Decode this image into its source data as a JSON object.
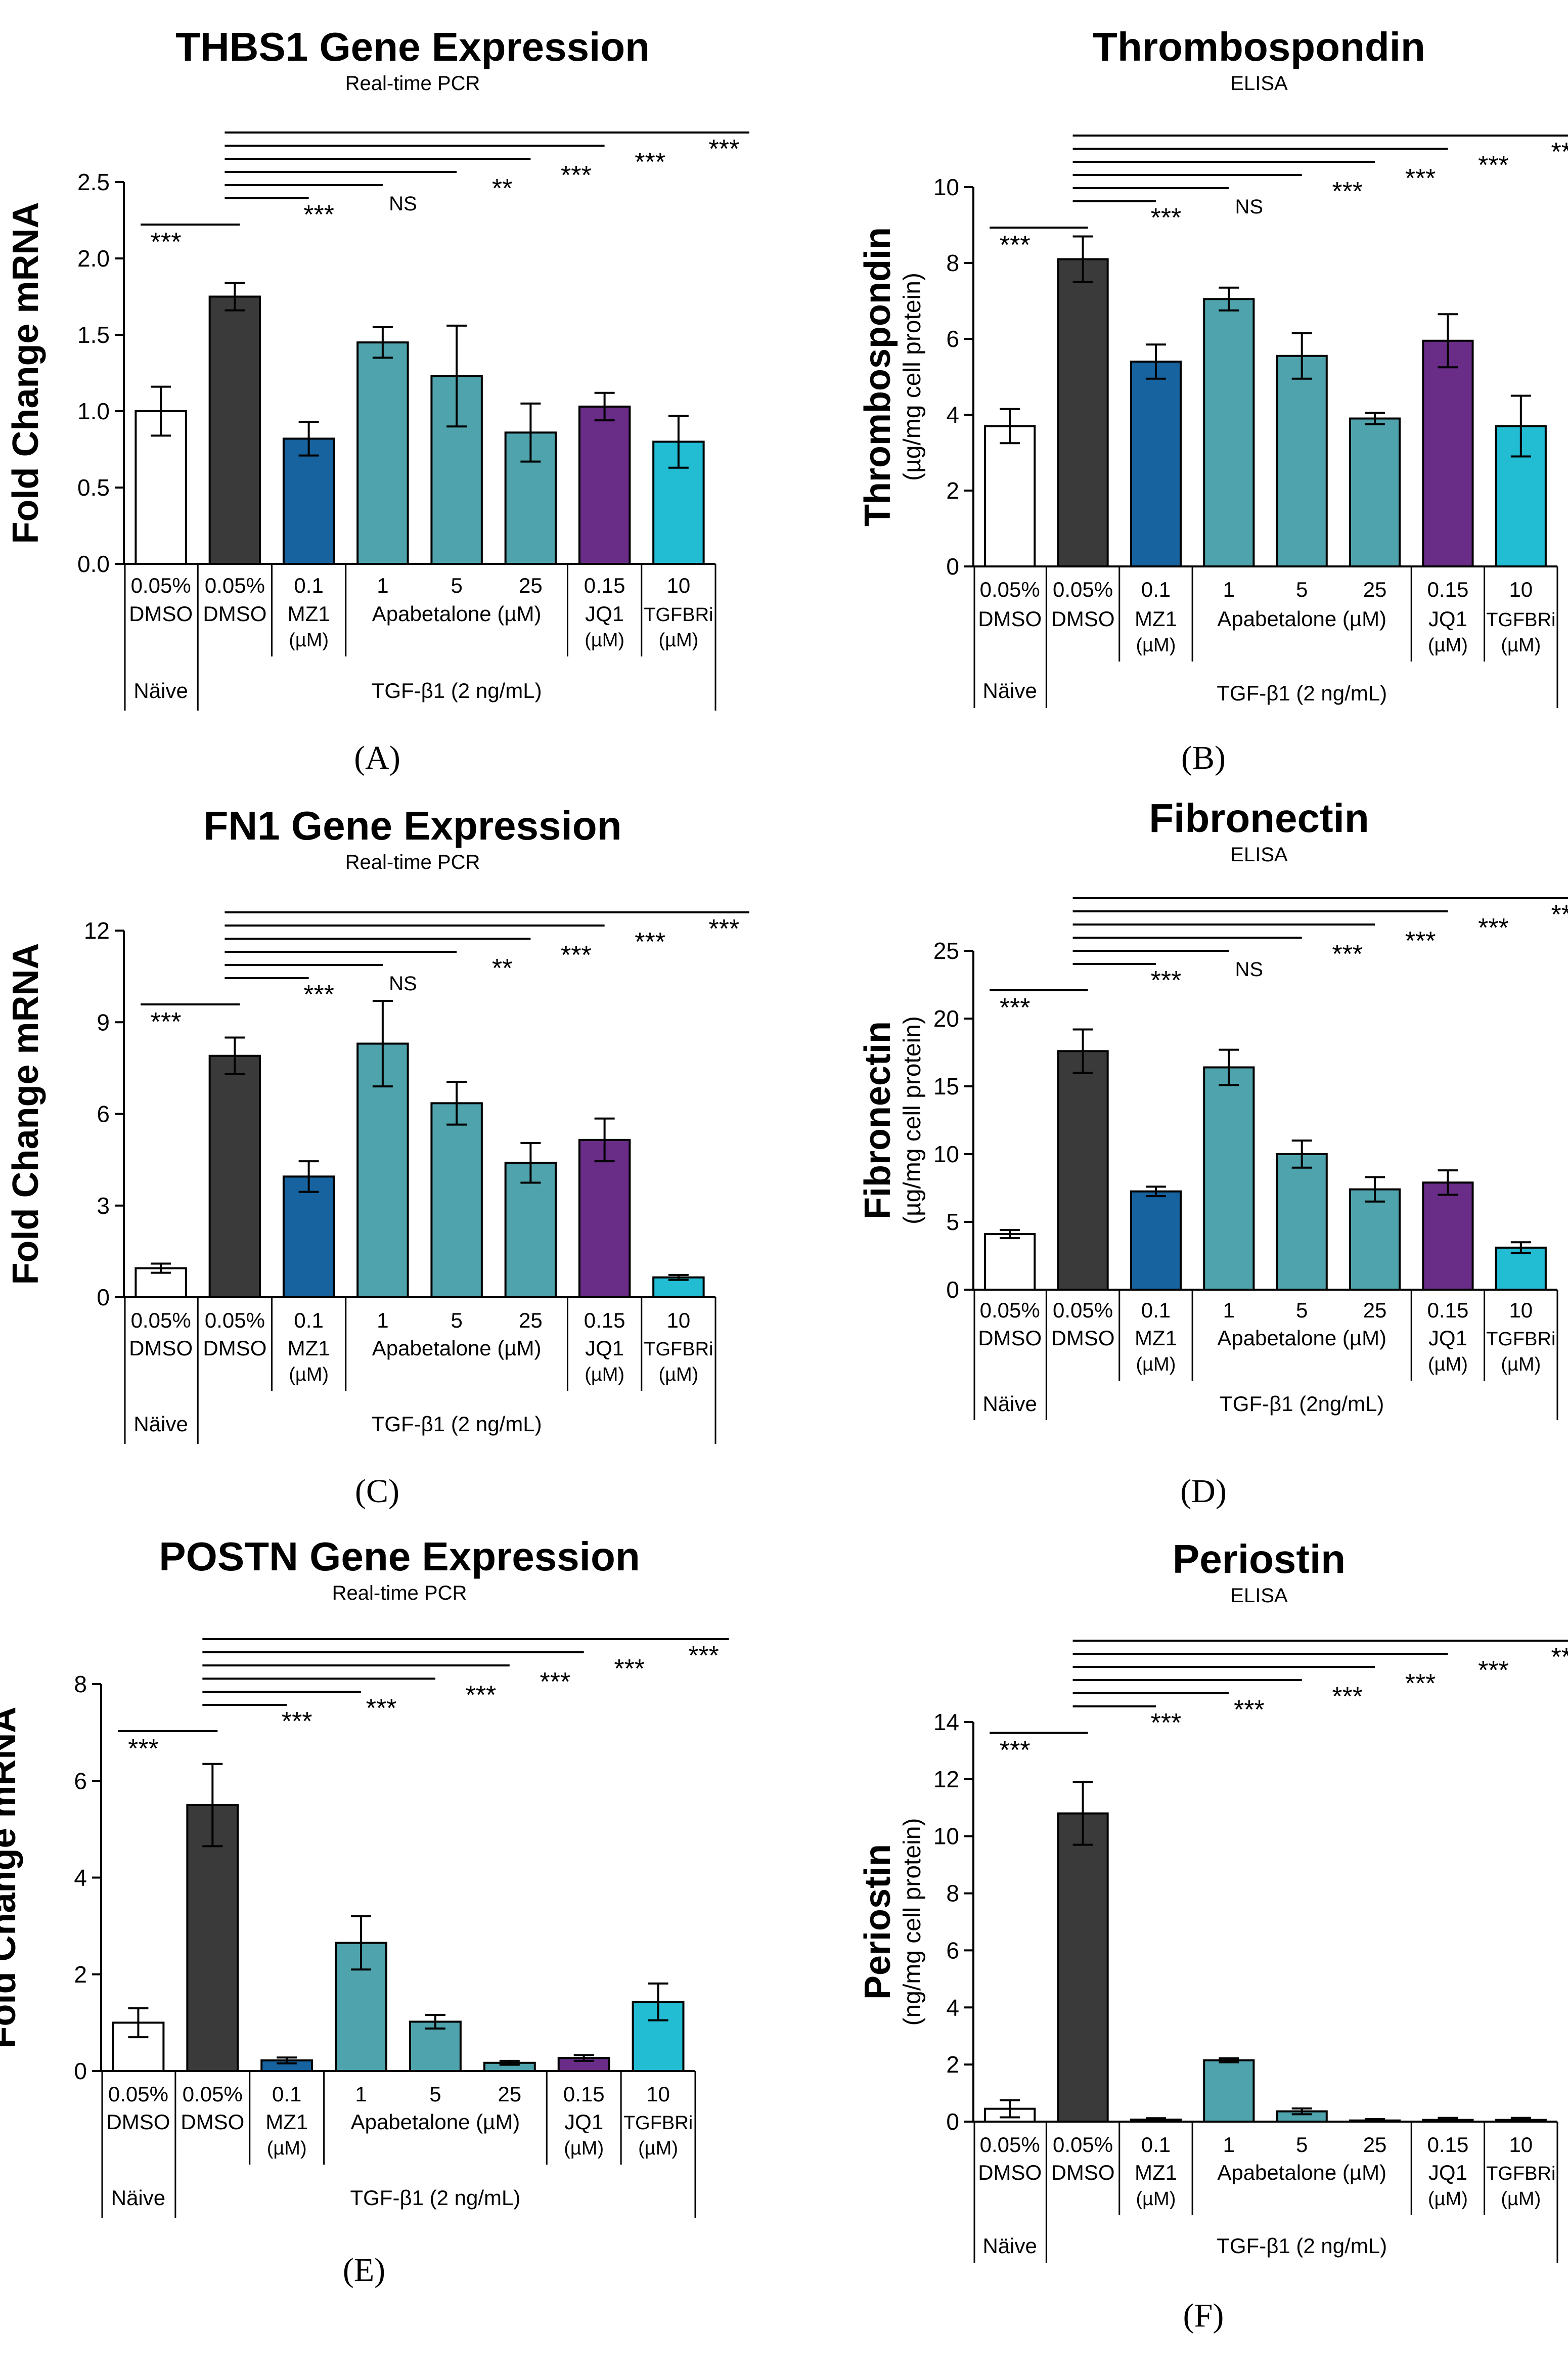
{
  "chart_data": [
    {
      "type": "bar",
      "panel": "(A)",
      "title": "THBS1 Gene Expression",
      "subtitle": "Real-time PCR",
      "ylabel": "Fold Change mRNA",
      "ylabel_unit": "",
      "ylim": [
        0,
        2.5
      ],
      "yticks": [
        "0.0",
        "0.5",
        "1.0",
        "1.5",
        "2.0",
        "2.5"
      ],
      "values": [
        1.0,
        1.75,
        0.82,
        1.45,
        1.23,
        0.86,
        1.03,
        0.8
      ],
      "errors": [
        0.16,
        0.09,
        0.11,
        0.1,
        0.33,
        0.19,
        0.09,
        0.17
      ],
      "significance": [
        "***",
        "***",
        "NS",
        "**",
        "***",
        "***",
        "***"
      ]
    },
    {
      "type": "bar",
      "panel": "(B)",
      "title": "Thrombospondin",
      "subtitle": "ELISA",
      "ylabel": "Thrombospondin",
      "ylabel_unit": "(µg/mg cell protein)",
      "ylim": [
        0,
        10
      ],
      "yticks": [
        "0",
        "2",
        "4",
        "6",
        "8",
        "10"
      ],
      "values": [
        3.7,
        8.1,
        5.4,
        7.05,
        5.55,
        3.9,
        5.95,
        3.7
      ],
      "errors": [
        0.45,
        0.6,
        0.45,
        0.3,
        0.6,
        0.15,
        0.7,
        0.8
      ],
      "significance": [
        "***",
        "***",
        "NS",
        "***",
        "***",
        "***",
        "***"
      ]
    },
    {
      "type": "bar",
      "panel": "(C)",
      "title": "FN1 Gene Expression",
      "subtitle": "Real-time PCR",
      "ylabel": "Fold Change mRNA",
      "ylabel_unit": "",
      "ylim": [
        0,
        12
      ],
      "yticks": [
        "0",
        "3",
        "6",
        "9",
        "12"
      ],
      "values": [
        0.95,
        7.9,
        3.95,
        8.3,
        6.35,
        4.4,
        5.15,
        0.65
      ],
      "errors": [
        0.15,
        0.6,
        0.5,
        1.4,
        0.7,
        0.65,
        0.7,
        0.08
      ],
      "significance": [
        "***",
        "***",
        "NS",
        "**",
        "***",
        "***",
        "***"
      ]
    },
    {
      "type": "bar",
      "panel": "(D)",
      "title": "Fibronectin",
      "subtitle": "ELISA",
      "ylabel": "Fibronectin",
      "ylabel_unit": "(µg/mg cell protein)",
      "ylim": [
        0,
        25
      ],
      "yticks": [
        "0",
        "5",
        "10",
        "15",
        "20",
        "25"
      ],
      "values": [
        4.1,
        17.6,
        7.25,
        16.4,
        10.0,
        7.4,
        7.9,
        3.1
      ],
      "errors": [
        0.3,
        1.6,
        0.35,
        1.3,
        1.0,
        0.9,
        0.9,
        0.4
      ],
      "significance": [
        "***",
        "***",
        "NS",
        "***",
        "***",
        "***",
        "***"
      ]
    },
    {
      "type": "bar",
      "panel": "(E)",
      "title": "POSTN Gene Expression",
      "subtitle": "Real-time PCR",
      "ylabel": "Fold Change mRNA",
      "ylabel_unit": "",
      "ylim": [
        0,
        8
      ],
      "yticks": [
        "0",
        "2",
        "4",
        "6",
        "8"
      ],
      "values": [
        1.0,
        5.5,
        0.22,
        2.65,
        1.02,
        0.17,
        0.27,
        1.43
      ],
      "errors": [
        0.3,
        0.85,
        0.06,
        0.55,
        0.14,
        0.04,
        0.06,
        0.38
      ],
      "significance": [
        "***",
        "***",
        "***",
        "***",
        "***",
        "***",
        "***"
      ]
    },
    {
      "type": "bar",
      "panel": "(F)",
      "title": "Periostin",
      "subtitle": "ELISA",
      "ylabel": "Periostin",
      "ylabel_unit": "(ng/mg cell protein)",
      "ylim": [
        0,
        14
      ],
      "yticks": [
        "0",
        "2",
        "4",
        "6",
        "8",
        "10",
        "12",
        "14"
      ],
      "values": [
        0.45,
        10.8,
        0.07,
        2.15,
        0.36,
        0.04,
        0.06,
        0.06
      ],
      "errors": [
        0.3,
        1.1,
        0.05,
        0.07,
        0.1,
        0.05,
        0.07,
        0.07
      ],
      "significance": [
        "***",
        "***",
        "***",
        "***",
        "***",
        "***",
        "***"
      ]
    }
  ],
  "labels": {
    "concentrations": [
      "0.05%",
      "0.05%",
      "0.1",
      "1",
      "5",
      "25",
      "0.15",
      "10"
    ],
    "dmso": "DMSO",
    "mz1": "MZ1",
    "apabetalone": "Apabetalone (µM)",
    "jq1": "JQ1",
    "tgfbri": "TGFBRi",
    "um": "(µM)",
    "naive": "Näive",
    "tgf": "TGF-β1 (2 ng/mL)",
    "tgf_alt": "TGF-β1 (2ng/mL)"
  },
  "colors": {
    "bars": [
      "#ffffff",
      "#3a3a3a",
      "#1763a0",
      "#4fa3ad",
      "#4fa3ad",
      "#4fa3ad",
      "#6a2d87",
      "#22bcd3"
    ],
    "ink": "#000000"
  }
}
